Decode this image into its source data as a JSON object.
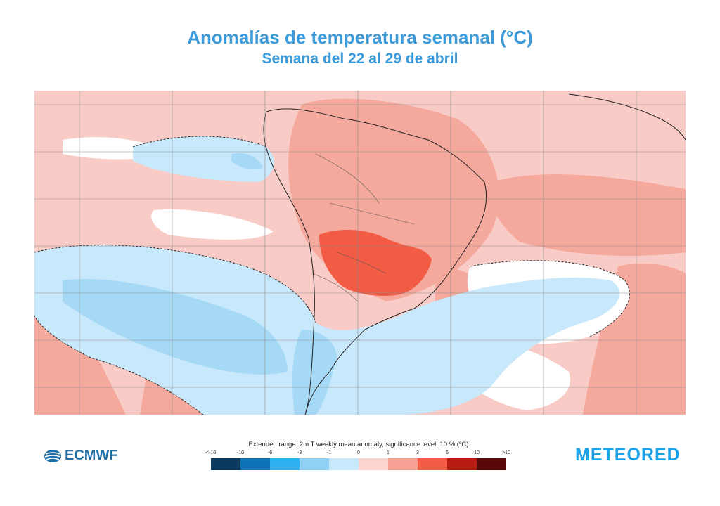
{
  "header": {
    "title": "Anomalías de temperatura semanal (°C)",
    "subtitle": "Semana del 22 al 29 de abril"
  },
  "legend": {
    "caption": "Extended range: 2m T weekly mean anomaly, significance level: 10 % (ºC)",
    "ticks": [
      "<-10",
      "-10",
      "-6",
      "-3",
      "-1",
      "0",
      "1",
      "3",
      "6",
      "10",
      ">10"
    ],
    "colors": [
      "#0b3a5e",
      "#0c73b6",
      "#2fb0f2",
      "#8fd0f5",
      "#c8e8fb",
      "#fbd3cf",
      "#f7a195",
      "#f35c45",
      "#b81c10",
      "#5a0808"
    ]
  },
  "logos": {
    "ecmwf": "ECMWF",
    "meteored": "METEORED"
  },
  "map": {
    "region": "South America and surrounding oceans",
    "base_color": "#f7c4bf"
  }
}
